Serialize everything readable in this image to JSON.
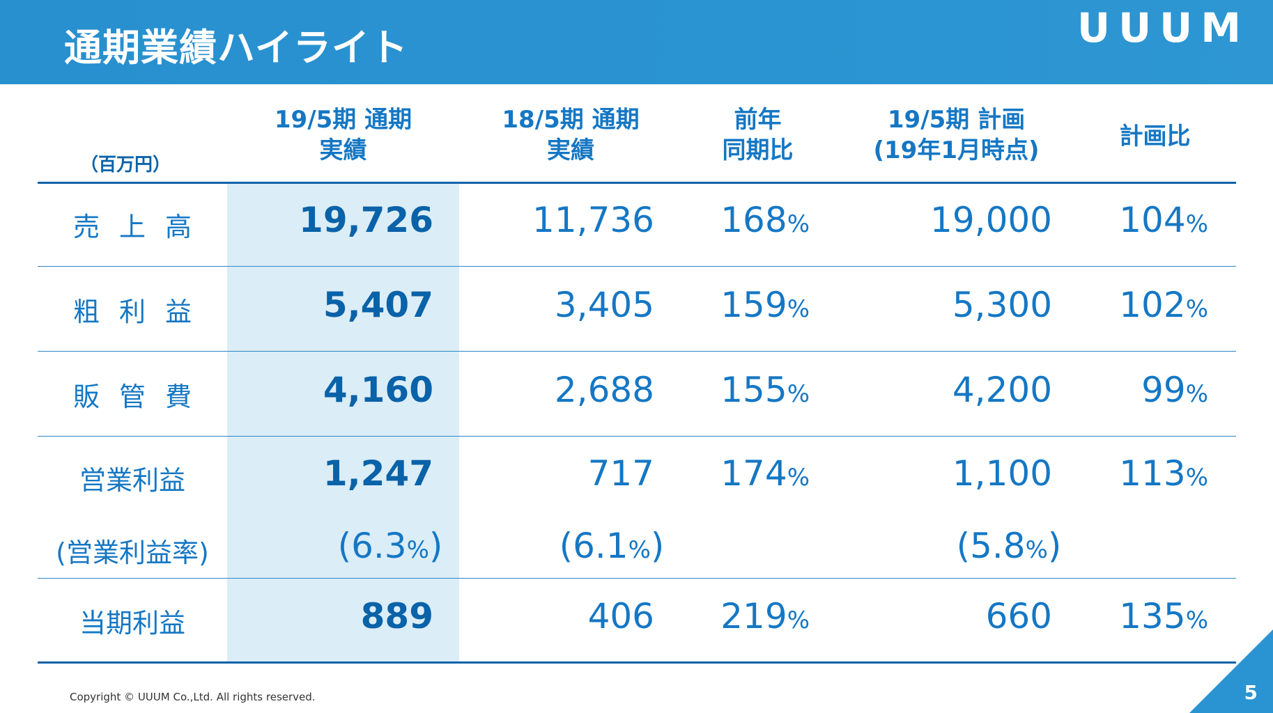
{
  "header": {
    "title": "通期業績ハイライト",
    "logo": "UUUM"
  },
  "table": {
    "unit": "（百万円）",
    "columns": {
      "c1": [
        "19/5期 通期",
        "実績"
      ],
      "c2": [
        "18/5期 通期",
        "実績"
      ],
      "c3": [
        "前年",
        "同期比"
      ],
      "c4": [
        "19/5期 計画",
        "(19年1月時点)"
      ],
      "c5": [
        "計画比"
      ]
    },
    "rows": {
      "sales": {
        "label": "売上高",
        "c1": "19,726",
        "c2": "11,736",
        "c3": "168",
        "c4": "19,000",
        "c5": "104"
      },
      "gross": {
        "label": "粗利益",
        "c1": "5,407",
        "c2": "3,405",
        "c3": "159",
        "c4": "5,300",
        "c5": "102"
      },
      "sga": {
        "label": "販管費",
        "c1": "4,160",
        "c2": "2,688",
        "c3": "155",
        "c4": "4,200",
        "c5": "99"
      },
      "op": {
        "label": "営業利益",
        "c1": "1,247",
        "c2": "717",
        "c3": "174",
        "c4": "1,100",
        "c5": "113"
      },
      "margin": {
        "label": "(営業利益率)",
        "c1": "6.3",
        "c2": "6.1",
        "c4": "5.8"
      },
      "net": {
        "label": "当期利益",
        "c1": "889",
        "c2": "406",
        "c3": "219",
        "c4": "660",
        "c5": "135"
      }
    },
    "pct": "%",
    "open": "(",
    "close": ")"
  },
  "footer": {
    "copyright": "Copyright © UUUM Co.,Ltd. All rights reserved.",
    "page": "5"
  },
  "colors": {
    "header": "#2990cf",
    "text": "#1577c4",
    "bold": "#0a62a8",
    "highlight": "#dbedf6"
  }
}
